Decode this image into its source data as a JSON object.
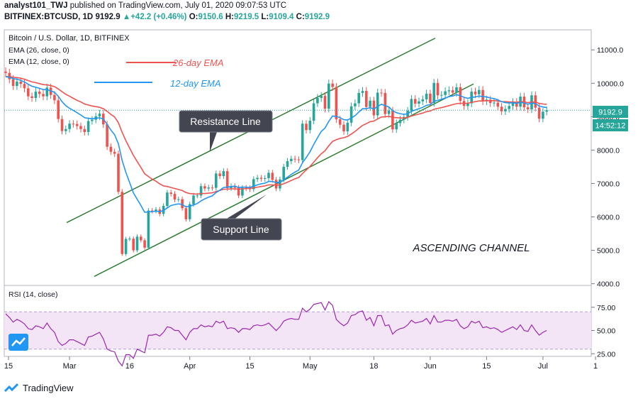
{
  "header": {
    "user": "analyst101_TWJ",
    "published_text": "published on TradingView.com, July 01, 2020 09:07:53 UTC",
    "symbol": "BITFINEX:BTCUSD, 1D",
    "last_price": "9192.9",
    "change": "+42.2 (+0.46%)",
    "o_label": "O:",
    "o_value": "9150.6",
    "h_label": "H:",
    "h_value": "9219.5",
    "l_label": "L:",
    "l_value": "9109.4",
    "c_label": "C:",
    "c_value": "9192.9"
  },
  "chart_data": {
    "type": "candlestick",
    "title": "Bitcoin / U.S. Dollar, 1D, BITFINEX",
    "indicators": [
      "EMA (26, close, 0)",
      "EMA (12, close, 0)"
    ],
    "rsi_label": "RSI (14, close)",
    "price_axis": {
      "ticks": [
        "11000.0",
        "10000.0",
        "9000.0",
        "8000.0",
        "7000.0",
        "6000.0",
        "5000.0",
        "4000.0"
      ],
      "ylim": [
        3950,
        11600
      ]
    },
    "rsi_axis": {
      "ticks": [
        "75.00",
        "50.00",
        "25.00"
      ],
      "band": [
        30,
        70
      ]
    },
    "x_ticks": [
      "15",
      "Mar",
      "16",
      "Apr",
      "15",
      "May",
      "18",
      "Jun",
      "15",
      "Jul",
      "1"
    ],
    "last_price_label": "9192.9",
    "countdown_label": "14:52:12",
    "legend": [
      {
        "name": "26-day EMA",
        "color": "#ef5350"
      },
      {
        "name": "12-day EMA",
        "color": "#2196f3"
      }
    ],
    "annotations": {
      "resistance": "Resistance Line",
      "support": "Support Line",
      "pattern": "ASCENDING CHANNEL"
    },
    "colors": {
      "up": "#26a69a",
      "down": "#ef5350",
      "channel": "#2e7d32",
      "rsi": "#9c27b0",
      "rsi_band": "#f3e5f5"
    },
    "close": [
      10310,
      10120,
      9920,
      10050,
      9980,
      9850,
      9610,
      9560,
      9750,
      9680,
      9610,
      9870,
      9650,
      9490,
      8930,
      8570,
      8630,
      8790,
      8780,
      8720,
      8630,
      8540,
      8870,
      8910,
      9010,
      9090,
      8770,
      8100,
      7950,
      7890,
      6750,
      4890,
      5340,
      5350,
      5000,
      5410,
      5300,
      5080,
      6190,
      6180,
      6220,
      6090,
      6330,
      6730,
      6690,
      6520,
      6530,
      6260,
      5930,
      6380,
      6640,
      6640,
      6920,
      6850,
      6880,
      6870,
      7300,
      7220,
      7370,
      6860,
      6920,
      6870,
      6640,
      6870,
      6860,
      6830,
      7130,
      7170,
      7140,
      7160,
      7320,
      7110,
      6850,
      7120,
      7500,
      7670,
      7740,
      7720,
      7700,
      8790,
      8600,
      8880,
      9400,
      9560,
      9620,
      9240,
      9990,
      9890,
      8920,
      8760,
      8560,
      8820,
      9310,
      9400,
      9710,
      9770,
      9290,
      9480,
      9040,
      9720,
      9710,
      9080,
      9180,
      8620,
      8810,
      8910,
      8990,
      9180,
      9530,
      9390,
      9460,
      9520,
      9690,
      9410,
      10010,
      9640,
      9650,
      9760,
      9790,
      9720,
      9880,
      9470,
      9320,
      9400,
      9750,
      9670,
      9800,
      9460,
      9510,
      9410,
      9420,
      9300,
      9160,
      9230,
      9320,
      9440,
      9300,
      9600,
      9280,
      9220,
      9640,
      9270,
      8940,
      9150,
      9192.9
    ],
    "ema26": [
      10200,
      10200,
      10180,
      10170,
      10150,
      10120,
      10080,
      10040,
      10020,
      9990,
      9960,
      9950,
      9930,
      9900,
      9830,
      9750,
      9670,
      9610,
      9550,
      9490,
      9440,
      9380,
      9350,
      9320,
      9300,
      9280,
      9240,
      9160,
      9070,
      8990,
      8820,
      8530,
      8280,
      8060,
      7840,
      7660,
      7480,
      7290,
      7210,
      7130,
      7070,
      6990,
      6930,
      6910,
      6880,
      6850,
      6820,
      6790,
      6730,
      6700,
      6690,
      6680,
      6700,
      6700,
      6710,
      6720,
      6760,
      6790,
      6830,
      6830,
      6840,
      6840,
      6830,
      6840,
      6850,
      6850,
      6870,
      6890,
      6910,
      6930,
      6960,
      6960,
      6950,
      6960,
      6990,
      7040,
      7090,
      7140,
      7180,
      7300,
      7400,
      7510,
      7640,
      7770,
      7890,
      7980,
      8130,
      8260,
      8310,
      8350,
      8370,
      8410,
      8480,
      8560,
      8650,
      8740,
      8790,
      8850,
      8870,
      8930,
      8990,
      9000,
      9010,
      8980,
      8970,
      8960,
      8960,
      8980,
      9020,
      9050,
      9080,
      9110,
      9150,
      9170,
      9220,
      9250,
      9270,
      9300,
      9330,
      9360,
      9390,
      9400,
      9400,
      9400,
      9430,
      9450,
      9470,
      9470,
      9480,
      9480,
      9480,
      9470,
      9450,
      9450,
      9440,
      9440,
      9430,
      9450,
      9440,
      9420,
      9440,
      9430,
      9400,
      9380,
      9370
    ],
    "ema12": [
      10200,
      10180,
      10140,
      10120,
      10090,
      10040,
      9970,
      9910,
      9880,
      9850,
      9810,
      9810,
      9770,
      9730,
      9610,
      9450,
      9330,
      9250,
      9190,
      9120,
      9050,
      8970,
      8950,
      8940,
      8950,
      8970,
      8930,
      8770,
      8600,
      8460,
      8190,
      7690,
      7330,
      7030,
      6720,
      6530,
      6340,
      6140,
      6150,
      6160,
      6170,
      6160,
      6190,
      6270,
      6340,
      6370,
      6390,
      6370,
      6300,
      6320,
      6360,
      6400,
      6480,
      6540,
      6590,
      6630,
      6730,
      6800,
      6880,
      6890,
      6910,
      6920,
      6880,
      6890,
      6890,
      6880,
      6920,
      6960,
      6990,
      7010,
      7060,
      7060,
      7030,
      7040,
      7110,
      7190,
      7270,
      7340,
      7400,
      7620,
      7780,
      7950,
      8170,
      8370,
      8560,
      8660,
      8860,
      9020,
      9010,
      8970,
      8910,
      8900,
      8960,
      9030,
      9140,
      9240,
      9240,
      9270,
      9230,
      9310,
      9370,
      9330,
      9290,
      9180,
      9120,
      9090,
      9070,
      9090,
      9160,
      9200,
      9240,
      9280,
      9340,
      9360,
      9460,
      9490,
      9520,
      9560,
      9600,
      9620,
      9660,
      9630,
      9580,
      9550,
      9580,
      9590,
      9620,
      9600,
      9590,
      9560,
      9540,
      9500,
      9450,
      9420,
      9410,
      9420,
      9400,
      9430,
      9410,
      9370,
      9410,
      9390,
      9320,
      9290,
      9270
    ],
    "rsi": [
      68,
      64,
      59,
      62,
      60,
      57,
      52,
      51,
      55,
      54,
      52,
      58,
      52,
      48,
      38,
      34,
      36,
      40,
      40,
      38,
      36,
      34,
      43,
      44,
      46,
      48,
      41,
      30,
      28,
      27,
      17,
      12,
      24,
      24,
      20,
      30,
      28,
      26,
      45,
      45,
      46,
      44,
      48,
      54,
      53,
      50,
      50,
      45,
      40,
      48,
      52,
      52,
      56,
      54,
      55,
      54,
      60,
      58,
      60,
      52,
      53,
      52,
      48,
      52,
      52,
      51,
      55,
      56,
      55,
      56,
      58,
      54,
      50,
      54,
      60,
      62,
      63,
      62,
      62,
      74,
      70,
      73,
      78,
      79,
      80,
      72,
      81,
      77,
      62,
      58,
      55,
      58,
      66,
      67,
      70,
      71,
      61,
      64,
      55,
      66,
      66,
      55,
      56,
      46,
      50,
      52,
      53,
      56,
      61,
      58,
      59,
      60,
      63,
      57,
      66,
      59,
      59,
      61,
      61,
      60,
      62,
      55,
      52,
      54,
      60,
      58,
      60,
      53,
      54,
      52,
      53,
      51,
      48,
      50,
      52,
      54,
      51,
      56,
      50,
      49,
      56,
      50,
      45,
      48,
      50
    ]
  },
  "branding": {
    "brand_name": "TradingView"
  }
}
